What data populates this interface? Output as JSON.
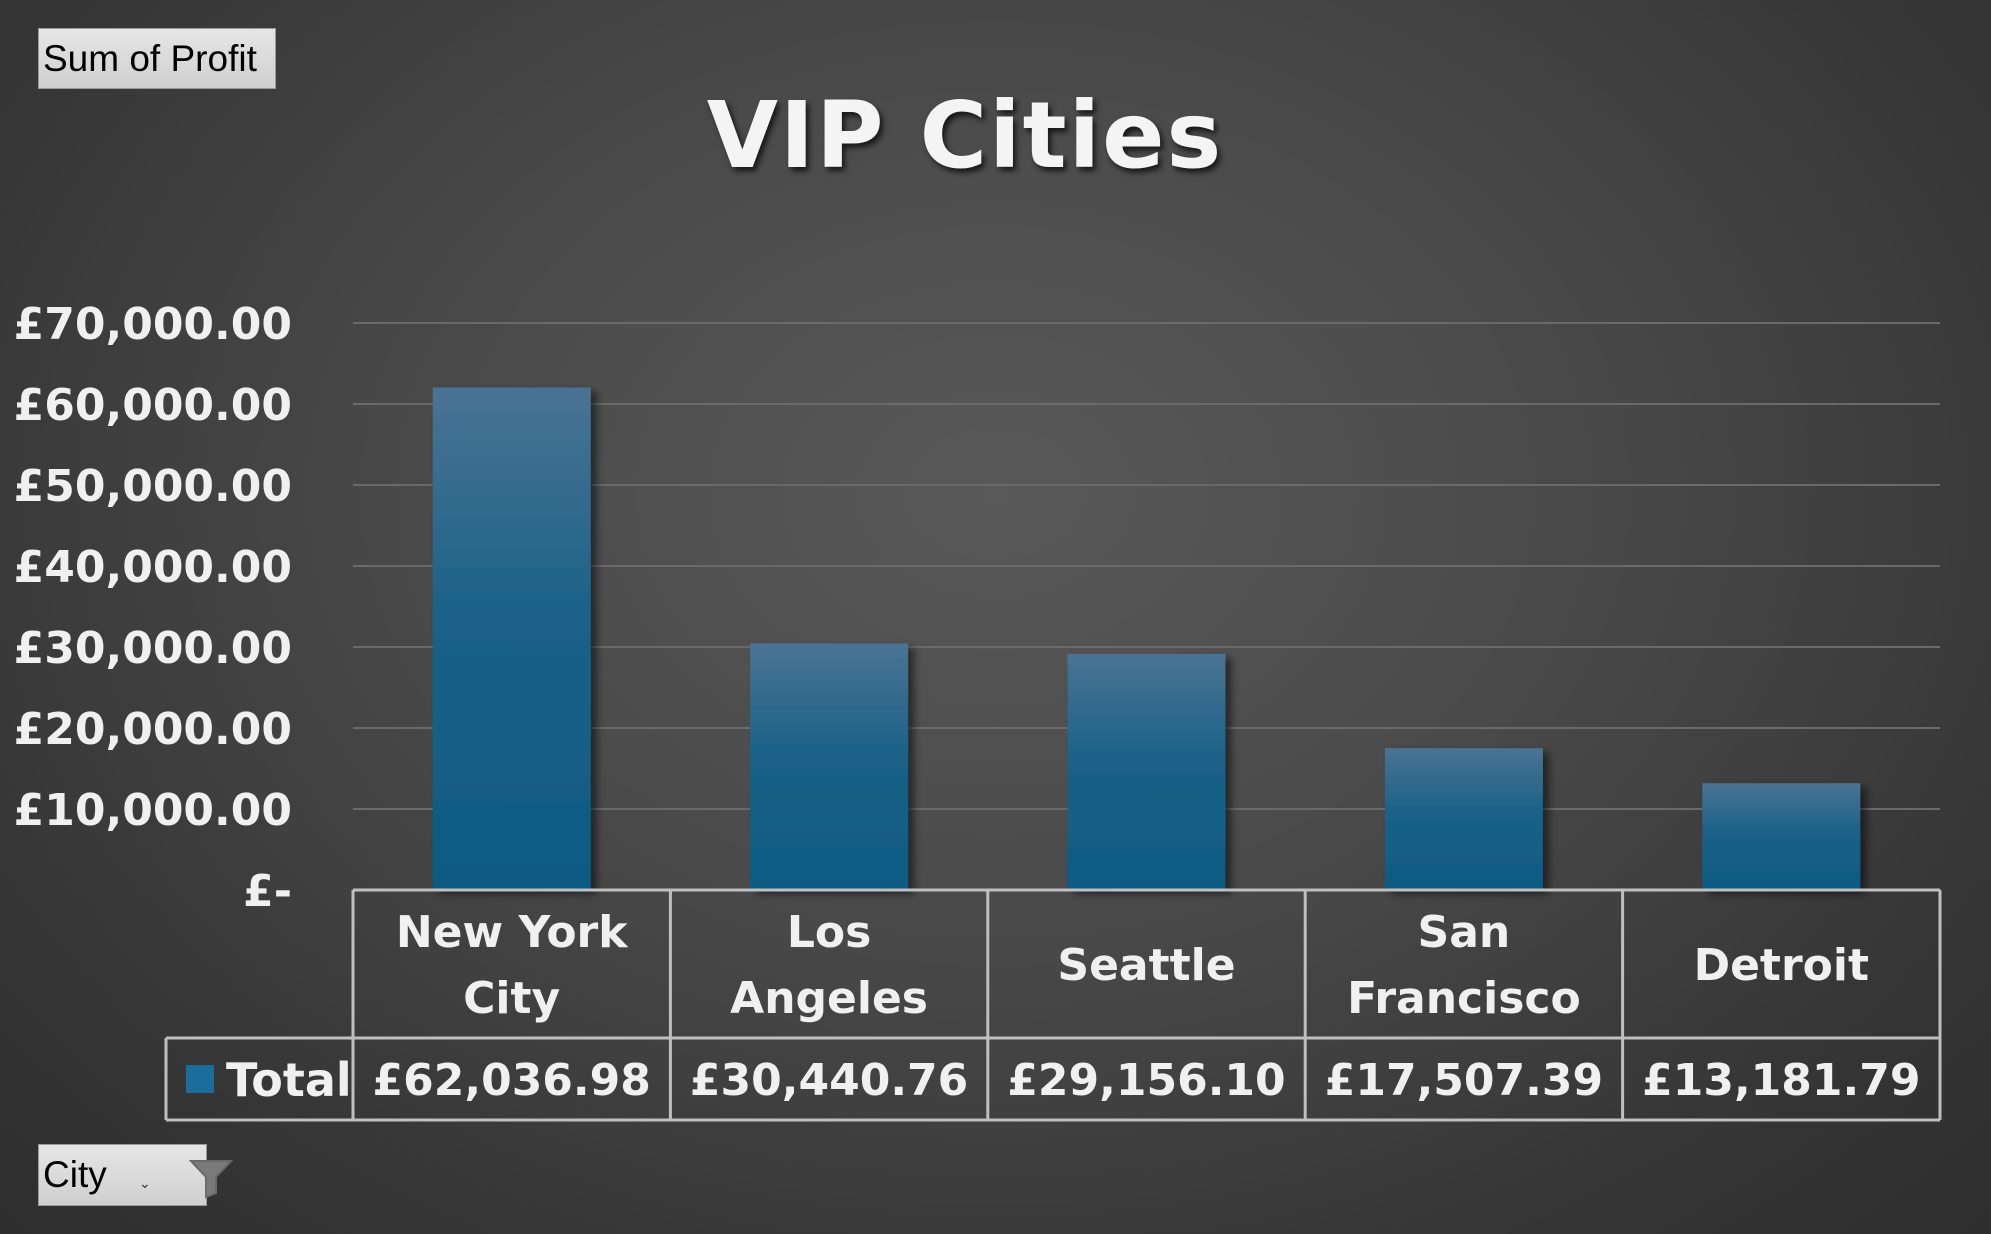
{
  "pivot": {
    "value_field": "Sum of Profit",
    "row_field": "City"
  },
  "colors": {
    "bar_top": "#4a7394",
    "bar_bottom": "#0d5a83",
    "legend_key": "#1a6c9a",
    "text": "#f0f0f0",
    "grid": "#6a6a6a",
    "table_border": "#bfbfbf"
  },
  "icons": {
    "filter": "funnel-filter-icon",
    "dropdown": "dropdown-arrow-icon"
  },
  "chart_data": {
    "type": "bar",
    "title": "VIP Cities",
    "categories": [
      [
        "New York",
        "City"
      ],
      [
        "Los",
        "Angeles"
      ],
      [
        "Seattle"
      ],
      [
        "San",
        "Francisco"
      ],
      [
        "Detroit"
      ]
    ],
    "series": [
      {
        "name": "Total",
        "values": [
          62036.98,
          30440.76,
          29156.1,
          17507.39,
          13181.79
        ],
        "value_labels": [
          "£62,036.98",
          "£30,440.76",
          "£29,156.10",
          "£17,507.39",
          "£13,181.79"
        ]
      }
    ],
    "ylim": [
      0,
      70000
    ],
    "yticks": [
      0,
      10000,
      20000,
      30000,
      40000,
      50000,
      60000,
      70000
    ],
    "ytick_labels": [
      "£-",
      "£10,000.00",
      "£20,000.00",
      "£30,000.00",
      "£40,000.00",
      "£50,000.00",
      "£60,000.00",
      "£70,000.00"
    ],
    "grid": true,
    "data_table": true,
    "legend": "in-data-table"
  }
}
